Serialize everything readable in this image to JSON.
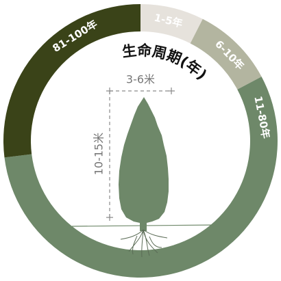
{
  "title": "生命周期(年)",
  "segments": [
    {
      "label": "1-5年",
      "color": "#e6e2dc"
    },
    {
      "label": "6-10年",
      "color": "#b3b5a0"
    },
    {
      "label": "11-80年",
      "color": "#6e8869"
    },
    {
      "label": "81-100年",
      "color": "#3a4318"
    }
  ],
  "tree": {
    "width_label": "3-6米",
    "height_label": "10-15米"
  }
}
